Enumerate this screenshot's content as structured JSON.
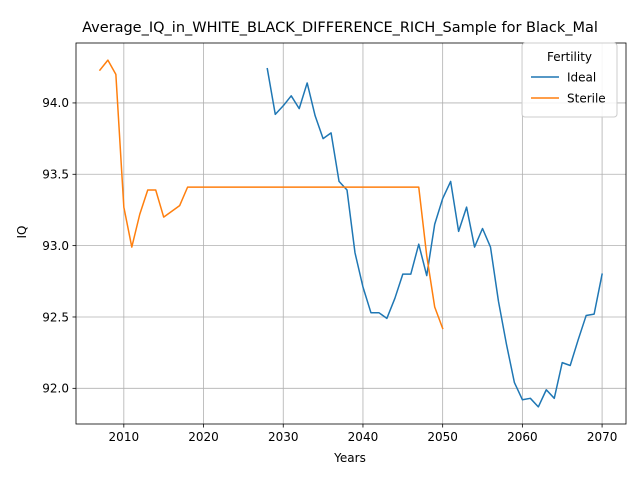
{
  "chart_data": {
    "type": "line",
    "title": "Average_IQ_in_WHITE_BLACK_DIFFERENCE_RICH_Sample for Black_Mal",
    "xlabel": "Years",
    "ylabel": "IQ",
    "xlim": [
      2004,
      2073
    ],
    "ylim": [
      91.75,
      94.42
    ],
    "x_ticks": [
      2010,
      2020,
      2030,
      2040,
      2050,
      2060,
      2070
    ],
    "y_ticks": [
      92.0,
      92.5,
      93.0,
      93.5,
      94.0
    ],
    "x_tick_labels": [
      "2010",
      "2020",
      "2030",
      "2040",
      "2050",
      "2060",
      "2070"
    ],
    "y_tick_labels": [
      "92.0",
      "92.5",
      "93.0",
      "93.5",
      "94.0"
    ],
    "grid": true,
    "legend": {
      "title": "Fertility",
      "placement": "top-right"
    },
    "series": [
      {
        "name": "Ideal",
        "color": "#1f77b4",
        "x": [
          2028,
          2029,
          2030,
          2031,
          2032,
          2033,
          2034,
          2035,
          2036,
          2037,
          2038,
          2039,
          2040,
          2041,
          2042,
          2043,
          2044,
          2045,
          2046,
          2047,
          2048,
          2049,
          2050,
          2051,
          2052,
          2053,
          2054,
          2055,
          2056,
          2057,
          2058,
          2059,
          2060,
          2061,
          2062,
          2063,
          2064,
          2065,
          2066,
          2067,
          2068,
          2069,
          2070
        ],
        "y": [
          94.24,
          93.92,
          93.98,
          94.05,
          93.96,
          94.14,
          93.91,
          93.75,
          93.79,
          93.45,
          93.39,
          92.95,
          92.71,
          92.53,
          92.53,
          92.49,
          92.63,
          92.8,
          92.8,
          93.01,
          92.79,
          93.15,
          93.33,
          93.45,
          93.1,
          93.27,
          92.99,
          93.12,
          92.99,
          92.61,
          92.31,
          92.04,
          91.92,
          91.93,
          91.87,
          91.99,
          91.93,
          92.18,
          92.16,
          92.34,
          92.51,
          92.52,
          92.8
        ]
      },
      {
        "name": "Sterile",
        "color": "#ff7f0e",
        "x": [
          2007,
          2008,
          2009,
          2010,
          2011,
          2012,
          2013,
          2014,
          2015,
          2016,
          2017,
          2018,
          2019,
          2020,
          2025,
          2030,
          2035,
          2040,
          2045,
          2046,
          2047,
          2048,
          2049,
          2050
        ],
        "y": [
          94.23,
          94.3,
          94.2,
          93.27,
          92.99,
          93.22,
          93.39,
          93.39,
          93.2,
          93.24,
          93.28,
          93.41,
          93.41,
          93.41,
          93.41,
          93.41,
          93.41,
          93.41,
          93.41,
          93.41,
          93.41,
          92.93,
          92.57,
          92.42
        ]
      }
    ]
  }
}
